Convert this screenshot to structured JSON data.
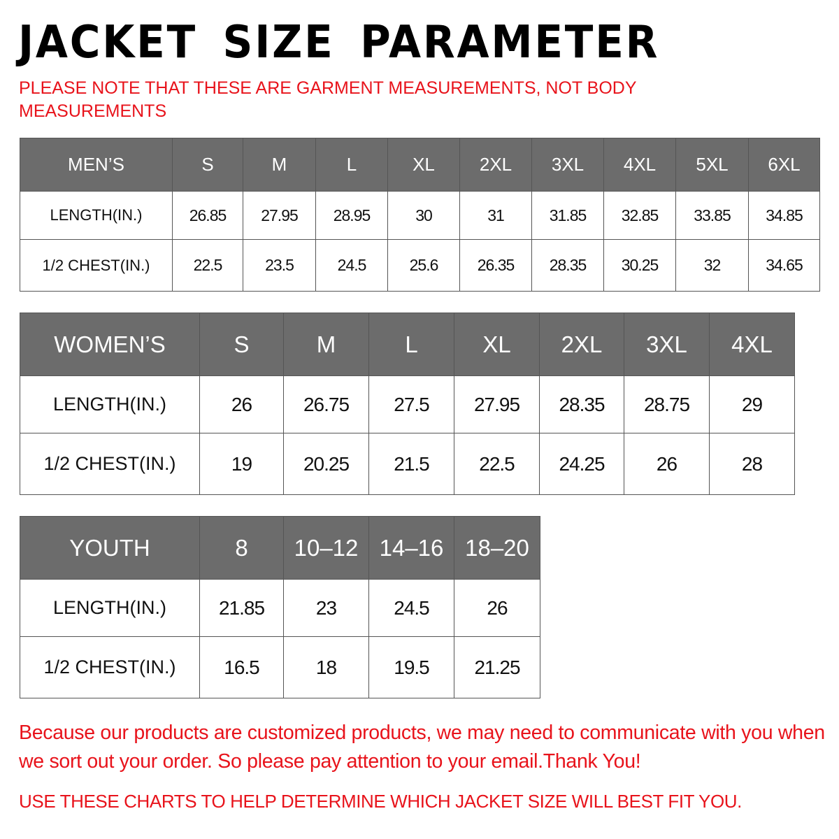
{
  "title": "JACKET SIZE PARAMETER",
  "note": "PLEASE NOTE THAT THESE ARE GARMENT MEASUREMENTS, NOT BODY MEASUREMENTS",
  "colors": {
    "header_bg": "#6c6c6c",
    "accent_red": "#e8131b"
  },
  "tables": {
    "men": {
      "header": [
        "MEN’S",
        "S",
        "M",
        "L",
        "XL",
        "2XL",
        "3XL",
        "4XL",
        "5XL",
        "6XL"
      ],
      "rows": [
        [
          "LENGTH(IN.)",
          "26.85",
          "27.95",
          "28.95",
          "30",
          "31",
          "31.85",
          "32.85",
          "33.85",
          "34.85"
        ],
        [
          "1/2 CHEST(IN.)",
          "22.5",
          "23.5",
          "24.5",
          "25.6",
          "26.35",
          "28.35",
          "30.25",
          "32",
          "34.65"
        ]
      ]
    },
    "women": {
      "header": [
        "WOMEN’S",
        "S",
        "M",
        "L",
        "XL",
        "2XL",
        "3XL",
        "4XL"
      ],
      "rows": [
        [
          "LENGTH(IN.)",
          "26",
          "26.75",
          "27.5",
          "27.95",
          "28.35",
          "28.75",
          "29"
        ],
        [
          "1/2 CHEST(IN.)",
          "19",
          "20.25",
          "21.5",
          "22.5",
          "24.25",
          "26",
          "28"
        ]
      ]
    },
    "youth": {
      "header": [
        "YOUTH",
        "8",
        "10–12",
        "14–16",
        "18–20"
      ],
      "rows": [
        [
          "LENGTH(IN.)",
          "21.85",
          "23",
          "24.5",
          "26"
        ],
        [
          "1/2 CHEST(IN.)",
          "16.5",
          "18",
          "19.5",
          "21.25"
        ]
      ]
    }
  },
  "footer": "Because our products are customized products, we may need to communicate with you when we sort out your order. So please pay attention to your email.Thank You!",
  "tip": "USE THESE CHARTS TO HELP DETERMINE WHICH JACKET SIZE WILL BEST FIT YOU."
}
